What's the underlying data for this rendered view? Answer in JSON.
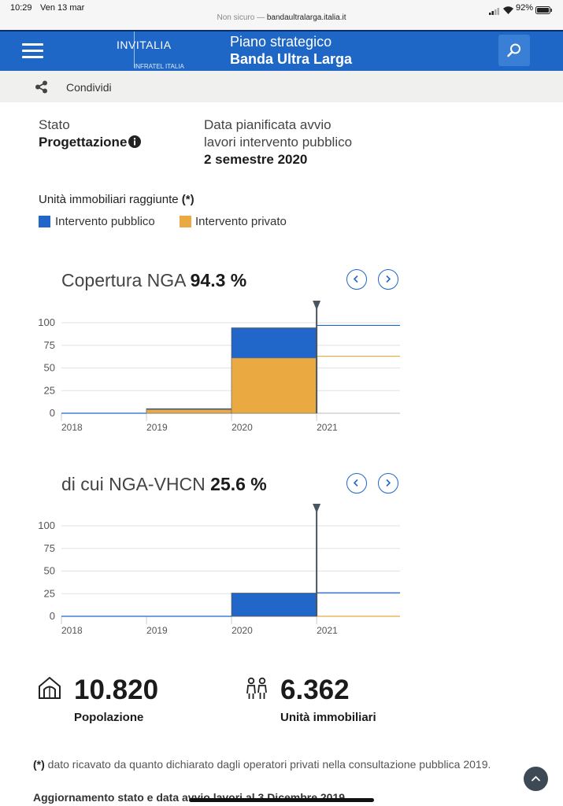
{
  "status_bar": {
    "time": "10:29",
    "date": "Ven 13 mar",
    "battery": "92%"
  },
  "browser": {
    "prefix": "Non sicuro — ",
    "host": "bandaultralarga.italia.it"
  },
  "header": {
    "logo_main": "INVITALIA",
    "logo_sub": "INFRATEL ITALIA",
    "title_line1": "Piano strategico",
    "title_line2": "Banda Ultra Larga",
    "menu_icon": "hamburger-menu-icon",
    "search_icon": "search-icon"
  },
  "share": {
    "label": "Condividi",
    "icon": "share-icon"
  },
  "info": {
    "stato_label": "Stato",
    "stato_value": "Progettazione",
    "data_label_line1": "Data pianificata avvio",
    "data_label_line2": "lavori intervento pubblico",
    "data_value": "2 semestre 2020"
  },
  "legend": {
    "title": "Unità immobiliari raggiunte",
    "title_mark": "(*)",
    "public_label": "Intervento pubblico",
    "private_label": "Intervento privato",
    "public_color": "#2166c9",
    "private_color": "#eaa941"
  },
  "charts": [
    {
      "title": "Copertura NGA",
      "value": "94.3 %"
    },
    {
      "title": "di cui NGA-VHCN",
      "value": "25.6 %"
    }
  ],
  "chart_data": [
    {
      "type": "area",
      "title": "Copertura NGA 94.3 %",
      "x_ticks": [
        "2018",
        "2019",
        "2020",
        "2021"
      ],
      "y_ticks": [
        "0",
        "25",
        "50",
        "75",
        "100"
      ],
      "ylim": [
        0,
        100
      ],
      "xlim": [
        2018,
        2021.98
      ],
      "marker_x": 2021,
      "series": [
        {
          "name": "Intervento privato",
          "color": "#eaa941",
          "steps": [
            [
              2018,
              0
            ],
            [
              2019,
              4
            ],
            [
              2020,
              61
            ],
            [
              2021,
              63
            ]
          ]
        },
        {
          "name": "Intervento pubblico",
          "color": "#2166c9",
          "steps": [
            [
              2018,
              0
            ],
            [
              2019,
              5
            ],
            [
              2020,
              94.3
            ],
            [
              2021,
              97
            ]
          ]
        }
      ]
    },
    {
      "type": "area",
      "title": "di cui NGA-VHCN 25.6 %",
      "x_ticks": [
        "2018",
        "2019",
        "2020",
        "2021"
      ],
      "y_ticks": [
        "0",
        "25",
        "50",
        "75",
        "100"
      ],
      "ylim": [
        0,
        100
      ],
      "xlim": [
        2018,
        2021.98
      ],
      "marker_x": 2021,
      "series": [
        {
          "name": "Intervento privato",
          "color": "#eaa941",
          "steps": [
            [
              2018,
              0
            ],
            [
              2019,
              0
            ],
            [
              2020,
              0
            ],
            [
              2021,
              0
            ]
          ]
        },
        {
          "name": "Intervento pubblico",
          "color": "#2166c9",
          "steps": [
            [
              2018,
              0
            ],
            [
              2019,
              0
            ],
            [
              2020,
              25.6
            ],
            [
              2021,
              26
            ]
          ]
        }
      ]
    }
  ],
  "stats": {
    "population_value": "10.820",
    "population_label": "Popolazione",
    "population_icon": "house-icon",
    "units_value": "6.362",
    "units_label": "Unità immobiliari",
    "units_icon": "people-icon"
  },
  "footnote": {
    "mark": "(*)",
    "text": " dato ricavato da quanto dichiarato dagli operatori privati nella consultazione pubblica 2019.",
    "update": "Aggiornamento stato e data avvio lavori al 3 Dicembre 2019"
  }
}
